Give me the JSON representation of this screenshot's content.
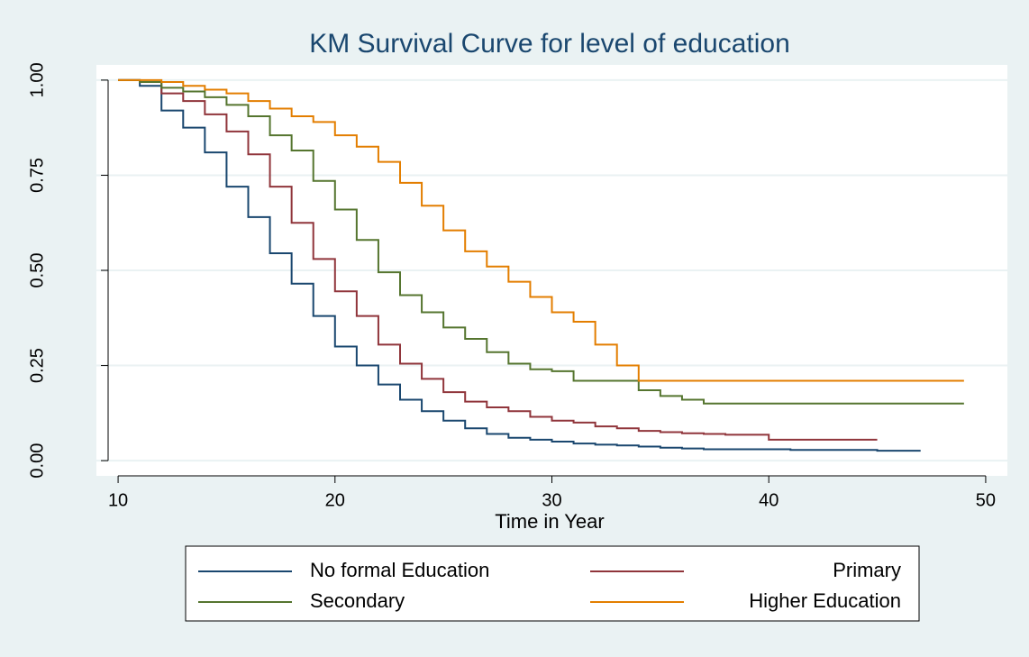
{
  "chart_data": {
    "type": "step",
    "title": "KM Survival Curve for level of education",
    "x_label": "Time in Year",
    "x": [
      10,
      11,
      12,
      13,
      14,
      15,
      16,
      17,
      18,
      19,
      20,
      21,
      22,
      23,
      24,
      25,
      26,
      27,
      28,
      29,
      30,
      31,
      32,
      33,
      34,
      35,
      36,
      37,
      38,
      39,
      40,
      41,
      42,
      43,
      44,
      45,
      46,
      47,
      48,
      49
    ],
    "xlim": [
      9,
      51
    ],
    "xticks": [
      10,
      20,
      30,
      40,
      50
    ],
    "ylim": [
      -0.04,
      1.04
    ],
    "yticks": [
      {
        "value": 0,
        "label": "0.00"
      },
      {
        "value": 0.25,
        "label": "0.25"
      },
      {
        "value": 0.5,
        "label": "0.50"
      },
      {
        "value": 0.75,
        "label": "0.75"
      },
      {
        "value": 1,
        "label": "1.00"
      }
    ],
    "grid": true,
    "series": [
      {
        "name": "No formal Education",
        "color": "#1a476f",
        "values": [
          1.0,
          0.985,
          0.92,
          0.875,
          0.81,
          0.72,
          0.64,
          0.545,
          0.465,
          0.38,
          0.3,
          0.25,
          0.2,
          0.16,
          0.13,
          0.105,
          0.085,
          0.07,
          0.06,
          0.055,
          0.05,
          0.045,
          0.042,
          0.04,
          0.037,
          0.034,
          0.032,
          0.03,
          0.03,
          0.03,
          0.03,
          0.028,
          0.028,
          0.028,
          0.028,
          0.026,
          0.026,
          0.026,
          null,
          null
        ]
      },
      {
        "name": "Primary",
        "color": "#90353b",
        "values": [
          1.0,
          0.995,
          0.965,
          0.945,
          0.91,
          0.865,
          0.805,
          0.72,
          0.625,
          0.53,
          0.445,
          0.38,
          0.305,
          0.255,
          0.215,
          0.18,
          0.155,
          0.14,
          0.13,
          0.115,
          0.105,
          0.1,
          0.09,
          0.085,
          0.078,
          0.075,
          0.072,
          0.07,
          0.068,
          0.068,
          0.055,
          0.055,
          0.055,
          0.055,
          0.055,
          0.055,
          null,
          null,
          null,
          null
        ]
      },
      {
        "name": "Secondary",
        "color": "#55752f",
        "values": [
          1.0,
          0.995,
          0.98,
          0.97,
          0.955,
          0.935,
          0.905,
          0.855,
          0.815,
          0.735,
          0.66,
          0.58,
          0.495,
          0.435,
          0.39,
          0.35,
          0.32,
          0.285,
          0.255,
          0.24,
          0.235,
          0.21,
          0.21,
          0.21,
          0.185,
          0.17,
          0.16,
          0.15,
          0.15,
          0.15,
          0.15,
          0.15,
          0.15,
          0.15,
          0.15,
          0.15,
          0.15,
          0.15,
          0.15,
          0.15
        ]
      },
      {
        "name": "Higher Education",
        "color": "#e37e00",
        "values": [
          1.0,
          1.0,
          0.995,
          0.985,
          0.975,
          0.965,
          0.945,
          0.925,
          0.905,
          0.89,
          0.855,
          0.825,
          0.785,
          0.73,
          0.67,
          0.605,
          0.55,
          0.51,
          0.47,
          0.43,
          0.39,
          0.365,
          0.305,
          0.25,
          0.21,
          0.21,
          0.21,
          0.21,
          0.21,
          0.21,
          0.21,
          0.21,
          0.21,
          0.21,
          0.21,
          0.21,
          0.21,
          0.21,
          0.21,
          0.21
        ]
      }
    ]
  }
}
